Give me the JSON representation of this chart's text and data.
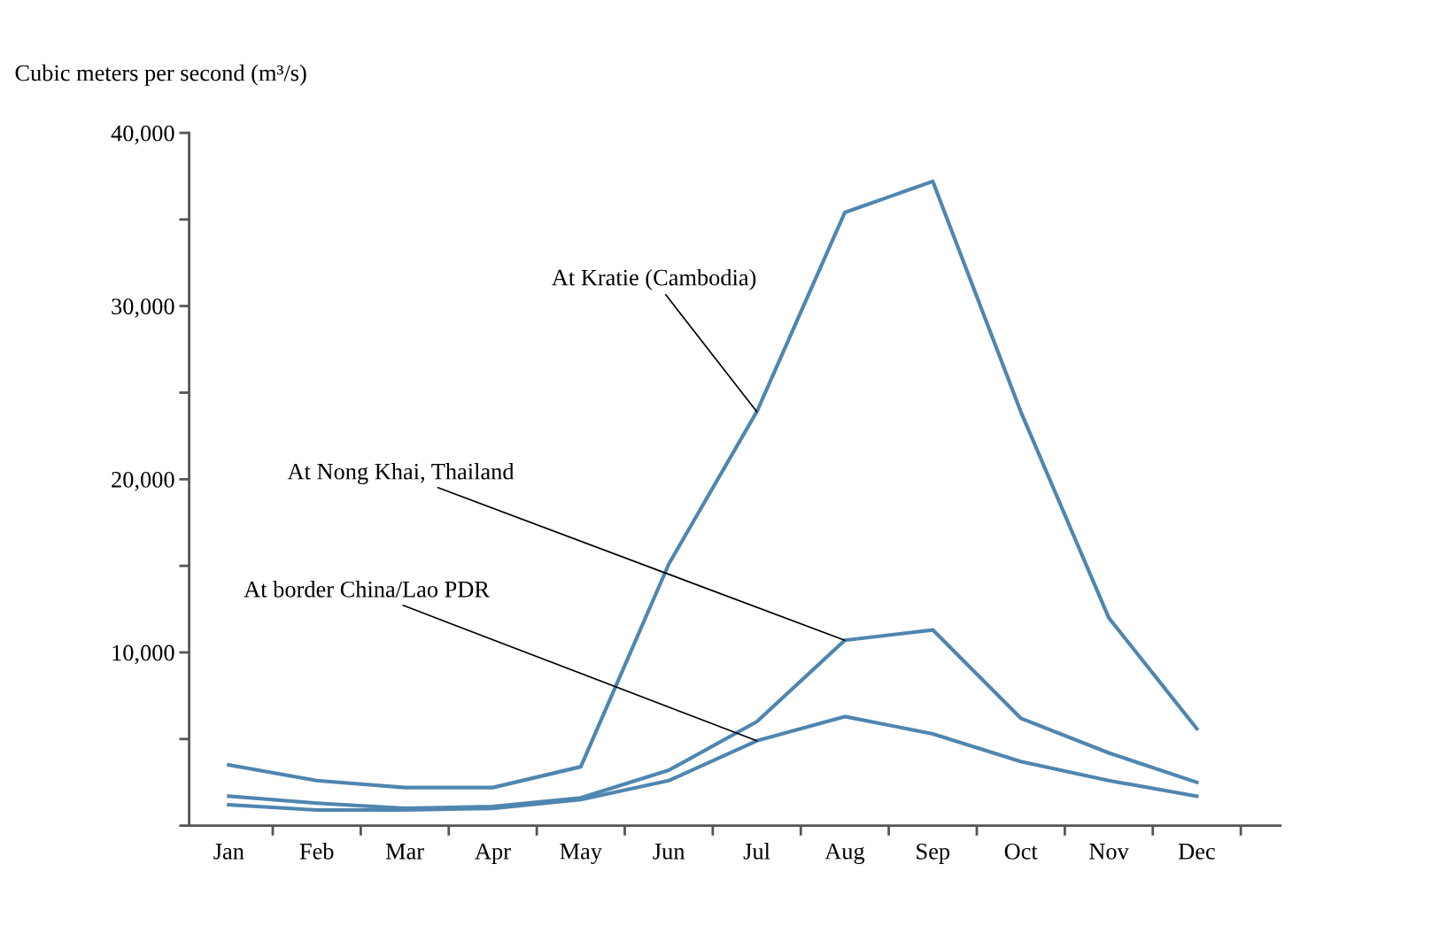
{
  "chart_data": {
    "type": "line",
    "ylabel": "Cubic meters per second (m³/s)",
    "categories": [
      "Jan",
      "Feb",
      "Mar",
      "Apr",
      "May",
      "Jun",
      "Jul",
      "Aug",
      "Sep",
      "Oct",
      "Nov",
      "Dec"
    ],
    "series": [
      {
        "name": "At Kratie (Cambodia)",
        "color": "#4f86b0",
        "values": [
          3500,
          2600,
          2200,
          2200,
          3400,
          15100,
          23900,
          35400,
          37200,
          23900,
          12000,
          5600
        ]
      },
      {
        "name": "At Nong Khai, Thailand",
        "color": "#4f86b0",
        "values": [
          1700,
          1300,
          1000,
          1100,
          1600,
          3200,
          6000,
          10700,
          11300,
          6200,
          4200,
          2500
        ]
      },
      {
        "name": "At border China/Lao PDR",
        "color": "#4f86b0",
        "values": [
          1200,
          900,
          900,
          1000,
          1500,
          2600,
          4900,
          6300,
          5300,
          3700,
          2600,
          1700
        ]
      }
    ],
    "ylim": [
      0,
      40000
    ],
    "yticks": [
      {
        "value": 0,
        "label": null
      },
      {
        "value": 5000,
        "label": null
      },
      {
        "value": 10000,
        "label": "10,000"
      },
      {
        "value": 15000,
        "label": null
      },
      {
        "value": 20000,
        "label": "20,000"
      },
      {
        "value": 25000,
        "label": null
      },
      {
        "value": 30000,
        "label": "30,000"
      },
      {
        "value": 35000,
        "label": null
      },
      {
        "value": 40000,
        "label": "40,000"
      }
    ],
    "grid": false,
    "legend": false,
    "marker": "none",
    "line_style": "solid"
  }
}
